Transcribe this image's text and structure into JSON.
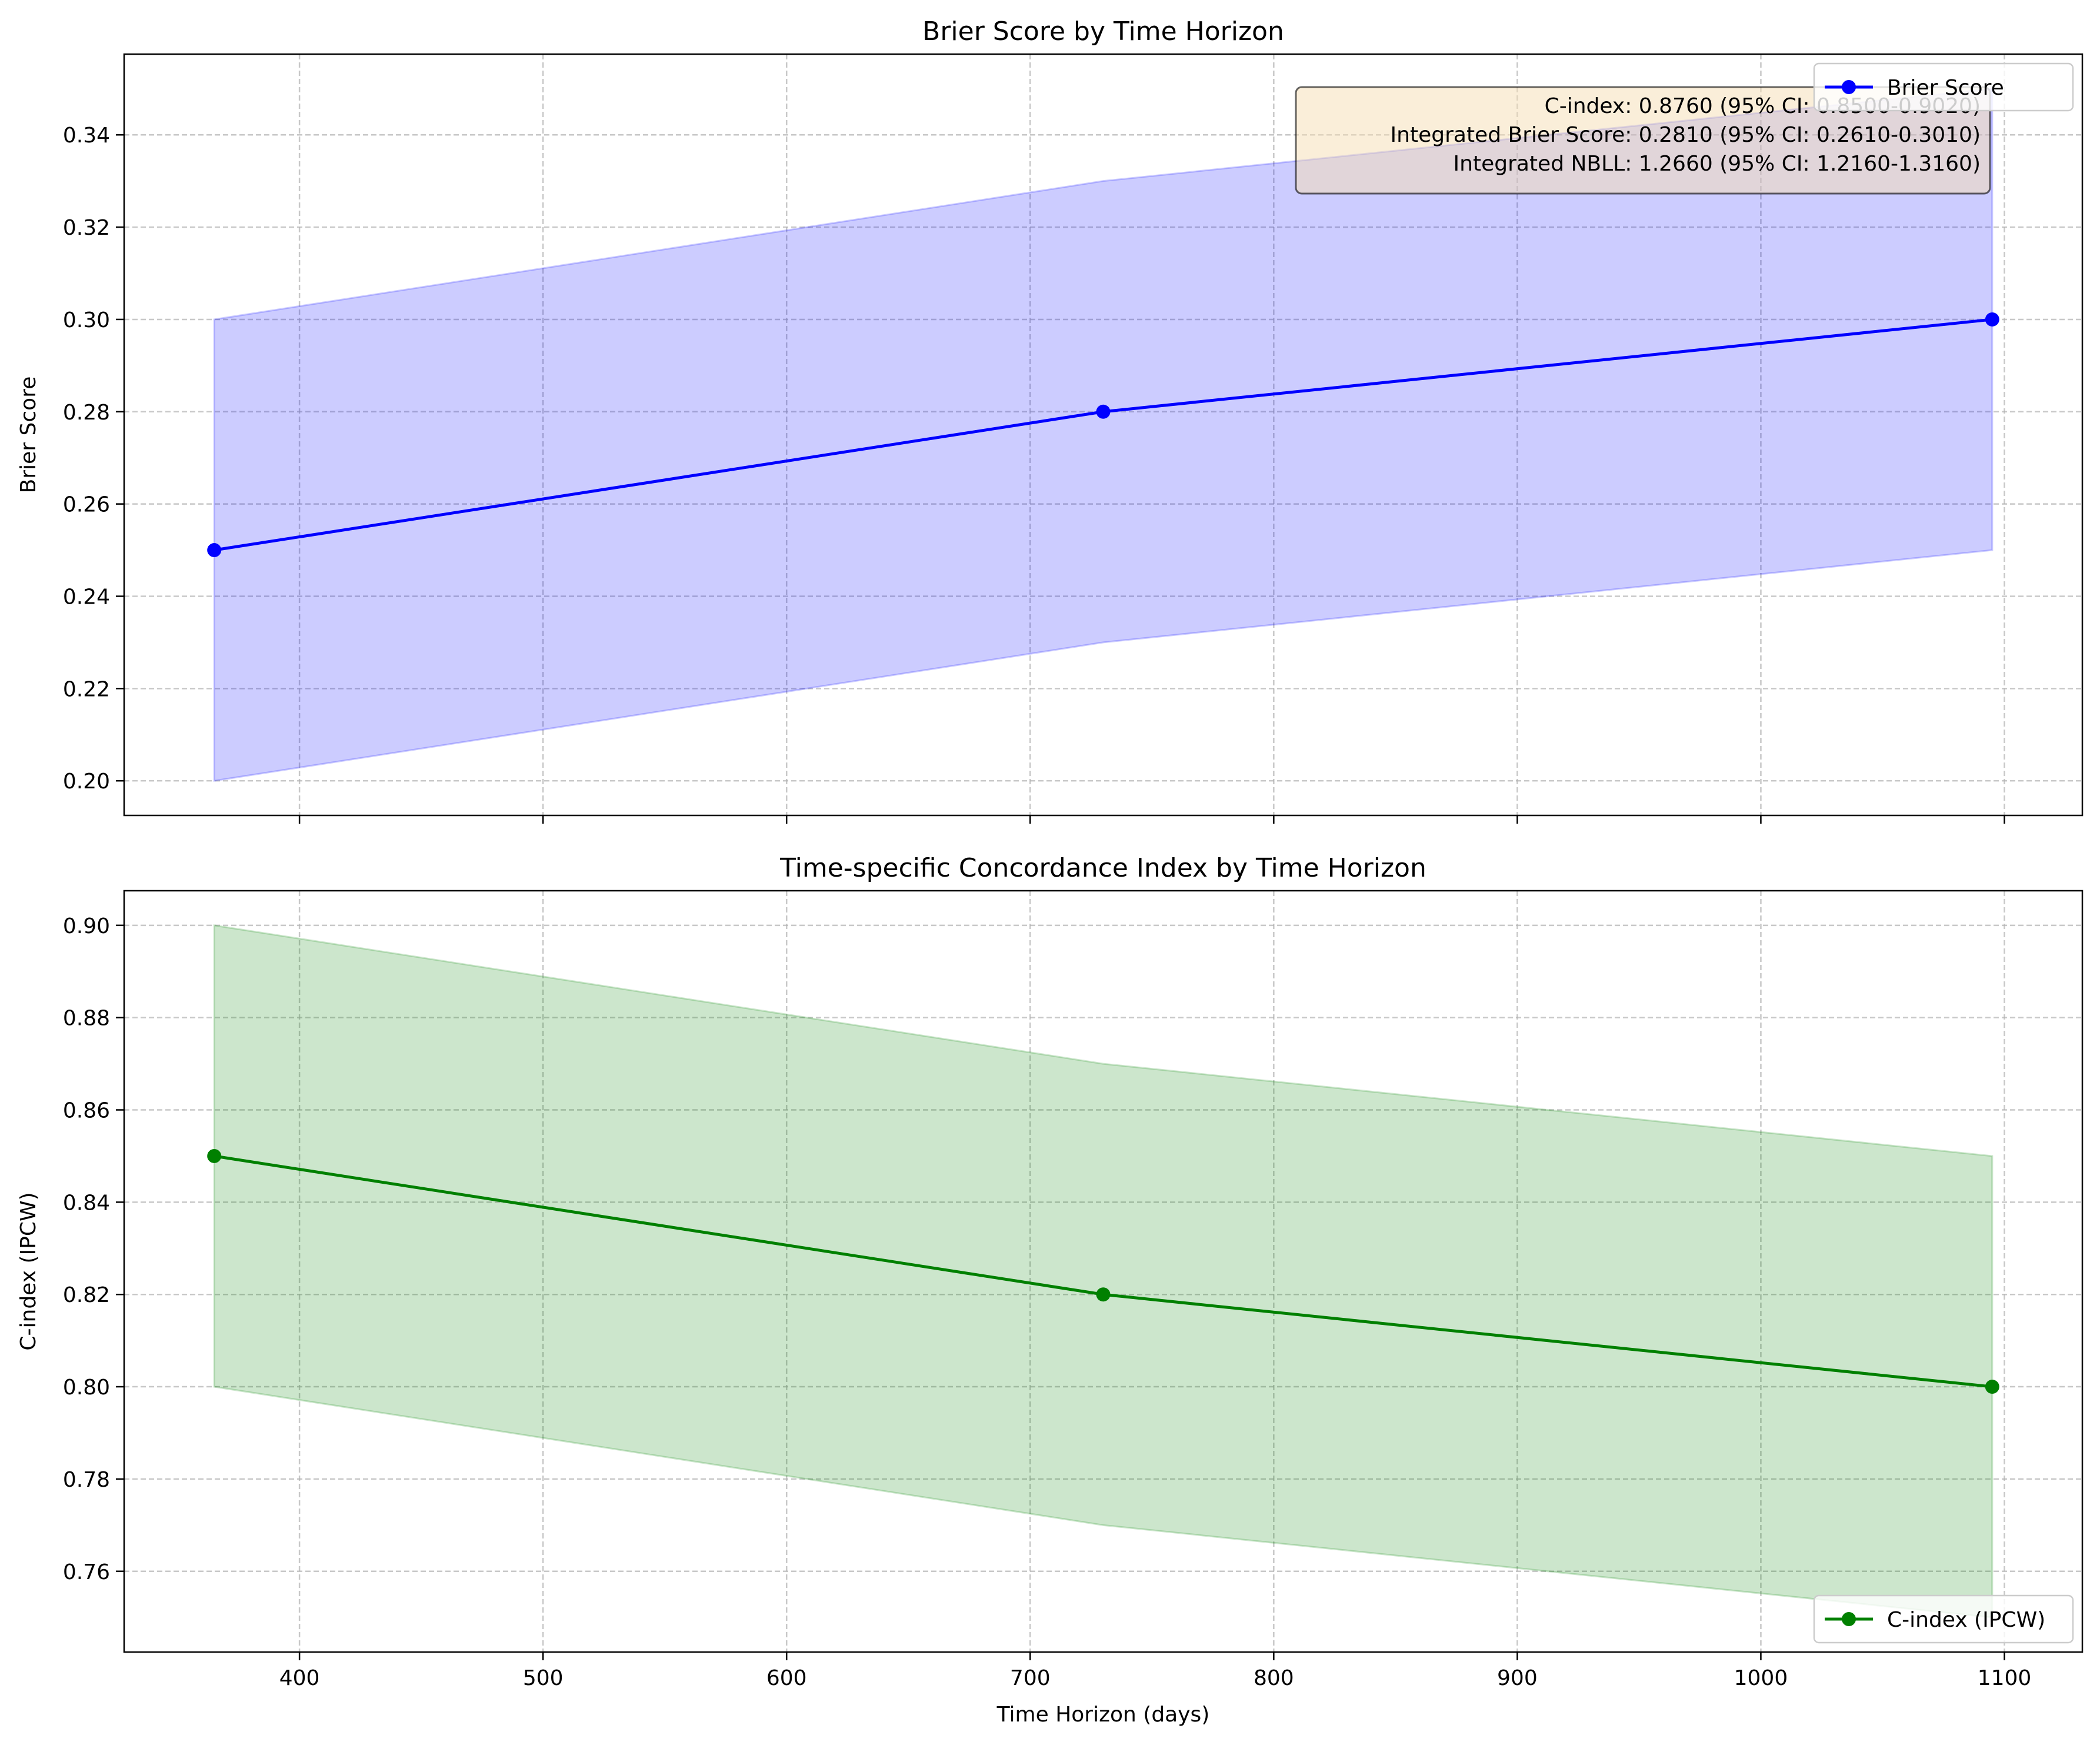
{
  "chart_data": [
    {
      "type": "line",
      "title": "Brier Score by Time Horizon",
      "xlabel": "",
      "ylabel": "Brier Score",
      "xlim": [
        328,
        1132
      ],
      "ylim": [
        0.1925,
        0.3575
      ],
      "xticks": [
        400,
        500,
        600,
        700,
        800,
        900,
        1000,
        1100
      ],
      "yticks": [
        0.2,
        0.22,
        0.24,
        0.26,
        0.28,
        0.3,
        0.32,
        0.34
      ],
      "ytick_labels": [
        "0.20",
        "0.22",
        "0.24",
        "0.26",
        "0.28",
        "0.30",
        "0.32",
        "0.34"
      ],
      "show_xtick_labels": false,
      "grid": true,
      "legend_position": "top-right",
      "series": [
        {
          "name": "Brier Score",
          "color": "#0000ff",
          "x": [
            365,
            730,
            1095
          ],
          "y": [
            0.25,
            0.28,
            0.3
          ],
          "ci_lower": [
            0.2,
            0.23,
            0.25
          ],
          "ci_upper": [
            0.3,
            0.33,
            0.35
          ],
          "band_color": "#0000ff"
        }
      ],
      "annotation": {
        "position": "top-right",
        "lines": [
          "C-index: 0.8760 (95% CI: 0.8500-0.9020)",
          "Integrated Brier Score: 0.2810 (95% CI: 0.2610-0.3010)",
          "Integrated NBLL: 1.2660 (95% CI: 1.2160-1.3160)"
        ]
      }
    },
    {
      "type": "line",
      "title": "Time-specific Concordance Index by Time Horizon",
      "xlabel": "Time Horizon (days)",
      "ylabel": "C-index (IPCW)",
      "xlim": [
        328,
        1132
      ],
      "ylim": [
        0.7425,
        0.9075
      ],
      "xticks": [
        400,
        500,
        600,
        700,
        800,
        900,
        1000,
        1100
      ],
      "yticks": [
        0.76,
        0.78,
        0.8,
        0.82,
        0.84,
        0.86,
        0.88,
        0.9
      ],
      "ytick_labels": [
        "0.76",
        "0.78",
        "0.80",
        "0.82",
        "0.84",
        "0.86",
        "0.88",
        "0.90"
      ],
      "show_xtick_labels": true,
      "grid": true,
      "legend_position": "bottom-right",
      "series": [
        {
          "name": "C-index (IPCW)",
          "color": "#008000",
          "x": [
            365,
            730,
            1095
          ],
          "y": [
            0.85,
            0.82,
            0.8
          ],
          "ci_lower": [
            0.8,
            0.77,
            0.75
          ],
          "ci_upper": [
            0.9,
            0.87,
            0.85
          ],
          "band_color": "#008000"
        }
      ]
    }
  ]
}
